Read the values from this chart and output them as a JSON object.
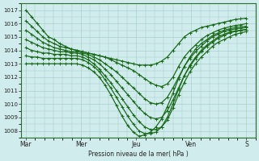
{
  "background_color": "#d0ecec",
  "grid_color": "#a0c8c8",
  "line_color": "#1a6b1a",
  "marker": "+",
  "markersize": 3,
  "linewidth": 0.9,
  "xlabel": "Pression niveau de la mer( hPa )",
  "ylim": [
    1007.5,
    1017.5
  ],
  "yticks": [
    1008,
    1009,
    1010,
    1011,
    1012,
    1013,
    1014,
    1015,
    1016,
    1017
  ],
  "xtick_labels": [
    "Mar",
    "Mer",
    "Jeu",
    "Ven",
    "S"
  ],
  "xtick_positions": [
    0,
    24,
    48,
    72,
    96
  ],
  "xlim": [
    -2,
    100
  ],
  "series": [
    [
      1017.0,
      1016.5,
      1016.0,
      1015.5,
      1015.0,
      1014.8,
      1014.5,
      1014.3,
      1014.1,
      1014.0,
      1013.9,
      1013.8,
      1013.7,
      1013.6,
      1013.5,
      1013.4,
      1013.3,
      1013.2,
      1013.1,
      1013.0,
      1012.9,
      1012.9,
      1012.9,
      1013.0,
      1013.2,
      1013.5,
      1014.0,
      1014.5,
      1015.0,
      1015.3,
      1015.5,
      1015.7,
      1015.8,
      1015.9,
      1016.0,
      1016.1,
      1016.2,
      1016.3,
      1016.35,
      1016.4
    ],
    [
      1016.2,
      1015.8,
      1015.4,
      1015.0,
      1014.7,
      1014.5,
      1014.3,
      1014.2,
      1014.1,
      1014.0,
      1013.9,
      1013.8,
      1013.7,
      1013.6,
      1013.5,
      1013.3,
      1013.1,
      1012.9,
      1012.7,
      1012.5,
      1012.2,
      1011.9,
      1011.6,
      1011.4,
      1011.3,
      1011.5,
      1012.0,
      1012.8,
      1013.5,
      1014.0,
      1014.4,
      1014.8,
      1015.1,
      1015.3,
      1015.5,
      1015.65,
      1015.75,
      1015.85,
      1015.9,
      1016.0
    ],
    [
      1015.5,
      1015.2,
      1014.9,
      1014.6,
      1014.4,
      1014.2,
      1014.1,
      1014.0,
      1013.9,
      1013.9,
      1013.8,
      1013.7,
      1013.5,
      1013.3,
      1013.0,
      1012.7,
      1012.4,
      1012.0,
      1011.6,
      1011.2,
      1010.8,
      1010.4,
      1010.1,
      1010.0,
      1010.1,
      1010.5,
      1011.2,
      1012.0,
      1012.8,
      1013.4,
      1013.9,
      1014.3,
      1014.7,
      1015.0,
      1015.2,
      1015.4,
      1015.5,
      1015.6,
      1015.65,
      1015.7
    ],
    [
      1014.8,
      1014.6,
      1014.4,
      1014.2,
      1014.1,
      1014.0,
      1013.9,
      1013.9,
      1013.8,
      1013.8,
      1013.7,
      1013.5,
      1013.3,
      1013.0,
      1012.6,
      1012.2,
      1011.7,
      1011.2,
      1010.7,
      1010.2,
      1009.7,
      1009.3,
      1009.0,
      1008.9,
      1009.0,
      1009.5,
      1010.3,
      1011.2,
      1012.1,
      1012.8,
      1013.4,
      1013.9,
      1014.3,
      1014.6,
      1014.9,
      1015.1,
      1015.3,
      1015.4,
      1015.5,
      1015.55
    ],
    [
      1014.2,
      1014.0,
      1013.9,
      1013.8,
      1013.8,
      1013.7,
      1013.7,
      1013.7,
      1013.6,
      1013.6,
      1013.5,
      1013.3,
      1013.0,
      1012.6,
      1012.1,
      1011.6,
      1011.0,
      1010.4,
      1009.8,
      1009.2,
      1008.7,
      1008.3,
      1008.1,
      1008.1,
      1008.3,
      1008.8,
      1009.7,
      1010.7,
      1011.6,
      1012.4,
      1013.0,
      1013.5,
      1013.9,
      1014.3,
      1014.6,
      1014.8,
      1015.0,
      1015.2,
      1015.3,
      1015.4
    ],
    [
      1013.6,
      1013.5,
      1013.5,
      1013.4,
      1013.4,
      1013.4,
      1013.4,
      1013.4,
      1013.4,
      1013.4,
      1013.3,
      1013.1,
      1012.8,
      1012.4,
      1011.8,
      1011.2,
      1010.5,
      1009.8,
      1009.1,
      1008.5,
      1008.0,
      1007.8,
      1007.8,
      1007.9,
      1008.3,
      1009.0,
      1010.0,
      1011.1,
      1012.1,
      1012.9,
      1013.5,
      1014.0,
      1014.4,
      1014.7,
      1015.0,
      1015.2,
      1015.35,
      1015.45,
      1015.5,
      1015.55
    ],
    [
      1013.0,
      1013.0,
      1013.0,
      1013.0,
      1013.0,
      1013.0,
      1013.0,
      1013.0,
      1013.0,
      1013.0,
      1012.9,
      1012.7,
      1012.4,
      1012.0,
      1011.4,
      1010.7,
      1009.9,
      1009.1,
      1008.4,
      1007.9,
      1007.6,
      1007.7,
      1007.9,
      1008.3,
      1008.9,
      1009.8,
      1010.8,
      1011.9,
      1012.8,
      1013.5,
      1014.1,
      1014.5,
      1014.8,
      1015.1,
      1015.3,
      1015.5,
      1015.6,
      1015.7,
      1015.75,
      1015.8
    ]
  ]
}
